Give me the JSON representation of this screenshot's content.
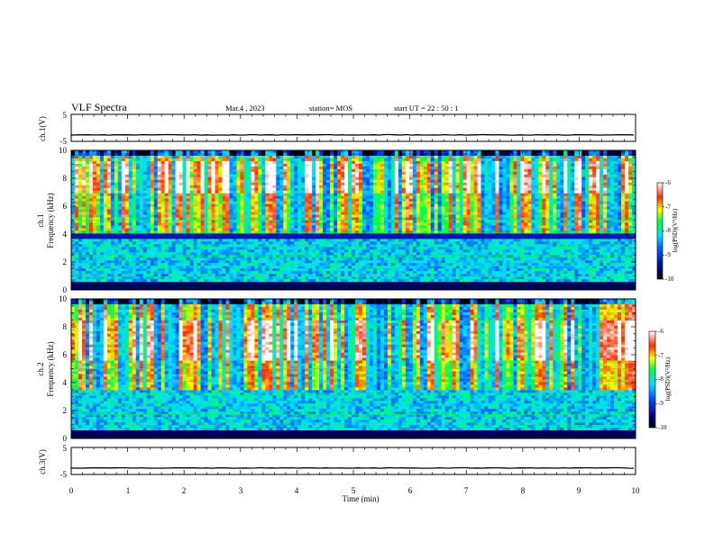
{
  "header": {
    "title": "VLF Spectra",
    "date": "Mar.4  , 2023",
    "station": "station= MOS",
    "start": "start  UT  =   22 : 50 : 1"
  },
  "chart_data": [
    {
      "type": "line",
      "id": "ch1-voltage",
      "ylabel": "ch.1(V)",
      "y_ticks": [
        "5",
        "-5"
      ],
      "ylim": [
        -5,
        5
      ],
      "xlim": [
        0,
        10
      ],
      "baseline_value": -2.6
    },
    {
      "type": "heatmap",
      "id": "ch1-spectrogram",
      "ylabel": "ch.1\nFrequency (kHz)",
      "ylabel_line1": "ch.1",
      "ylabel_line2": "Frequency (kHz)",
      "y_ticks": [
        "0",
        "2",
        "4",
        "6",
        "8",
        "10"
      ],
      "ylim": [
        0,
        10
      ],
      "xlim": [
        0,
        10
      ],
      "colorbar": {
        "label": "log(PSD)(V²/Hz)",
        "ticks": [
          "-6",
          "-7",
          "-8",
          "-9",
          "-10"
        ],
        "range": [
          -10,
          -6
        ]
      },
      "burst_band_khz": [
        4,
        10
      ],
      "peak_band_khz": [
        7,
        9.2
      ],
      "lower_band_khz": [
        0,
        3.6
      ]
    },
    {
      "type": "heatmap",
      "id": "ch2-spectrogram",
      "ylabel": "ch.2\nFrequency (kHz)",
      "ylabel_line1": "ch.2",
      "ylabel_line2": "Frequency (kHz)",
      "y_ticks": [
        "0",
        "2",
        "4",
        "6",
        "8",
        "10"
      ],
      "ylim": [
        0,
        10
      ],
      "xlim": [
        0,
        10
      ],
      "colorbar": {
        "label": "log(PSD)(V²/Hz)",
        "ticks": [
          "-6",
          "-7",
          "-8",
          "-9",
          "-10"
        ],
        "range": [
          -10,
          -6
        ]
      },
      "burst_band_khz": [
        3.5,
        10
      ],
      "peak_band_khz": [
        5.5,
        8.5
      ],
      "lower_band_khz": [
        0,
        3.5
      ]
    },
    {
      "type": "line",
      "id": "ch3-voltage",
      "ylabel": "ch.3(V)",
      "y_ticks": [
        "5",
        "-5"
      ],
      "ylim": [
        -5,
        5
      ],
      "xlim": [
        0,
        10
      ],
      "baseline_value": -2.6
    }
  ],
  "xaxis": {
    "label": "Time (min)",
    "ticks": [
      "0",
      "1",
      "2",
      "3",
      "4",
      "5",
      "6",
      "7",
      "8",
      "9",
      "10"
    ],
    "range": [
      0,
      10
    ]
  }
}
